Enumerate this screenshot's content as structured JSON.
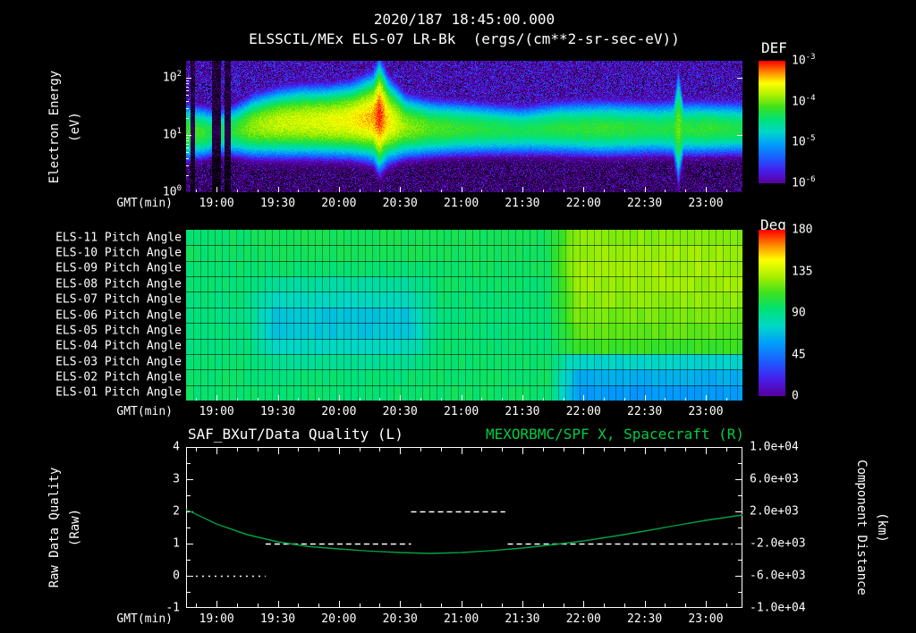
{
  "header": {
    "timestamp": "2020/187 18:45:00.000",
    "title": "ELSSCIL/MEx ELS-07 LR-Bk  (ergs/(cm**2-sr-sec-eV))"
  },
  "colors": {
    "background": "#000000",
    "text": "#ffffff",
    "title_right_green": "#00cc44",
    "curve_green": "#00a040",
    "quality_white": "#ffffff"
  },
  "time_axis": {
    "label": "GMT(min)",
    "start_hour": 18.75,
    "end_hour": 23.3,
    "tick_hours": [
      19.0,
      19.5,
      20.0,
      20.5,
      21.0,
      21.5,
      22.0,
      22.5,
      23.0
    ],
    "tick_labels": [
      "19:00",
      "19:30",
      "20:00",
      "20:30",
      "21:00",
      "21:30",
      "22:00",
      "22:30",
      "23:00"
    ]
  },
  "chart_data": [
    {
      "type": "heatmap",
      "name": "electron-energy-spectrogram",
      "title": "ELSSCIL/MEx ELS-07 LR-Bk",
      "units": "(ergs/(cm**2-sr-sec-eV))",
      "ylabel_lines": [
        "Electron Energy",
        "(eV)"
      ],
      "xlabel": "GMT(min)",
      "yticks": [
        "10^0",
        "10^1",
        "10^2"
      ],
      "y_log_positions": [
        0,
        1,
        2
      ],
      "y_log_range": [
        0,
        2.3
      ],
      "colorbar": {
        "title": "DEF",
        "ticks": [
          "10^-3",
          "10^-4",
          "10^-5",
          "10^-6"
        ],
        "log_range": [
          -6,
          -3
        ]
      },
      "band_keypoints": {
        "hours": [
          18.75,
          18.9,
          19.0,
          19.15,
          19.3,
          19.5,
          19.7,
          19.9,
          20.1,
          20.28,
          20.33,
          20.4,
          20.55,
          20.75,
          21.0,
          21.5,
          21.8,
          22.2,
          22.6,
          22.74,
          22.78,
          22.82,
          23.0,
          23.3
        ],
        "peak_log10_def": [
          -4.1,
          -4.2,
          -4.45,
          -4.2,
          -3.9,
          -3.75,
          -3.7,
          -3.65,
          -3.55,
          -3.35,
          -3.05,
          -3.5,
          -3.9,
          -4.1,
          -4.2,
          -4.35,
          -4.25,
          -4.2,
          -4.3,
          -4.25,
          -4.0,
          -4.25,
          -4.2,
          -4.3
        ],
        "center_eV": [
          11,
          11,
          11,
          12,
          14,
          16,
          17,
          17,
          18,
          20,
          22,
          18,
          14,
          13,
          13,
          12,
          13,
          13,
          13,
          13,
          14,
          13,
          13,
          13
        ],
        "sigma_decades": [
          0.28,
          0.26,
          0.24,
          0.26,
          0.3,
          0.32,
          0.33,
          0.33,
          0.34,
          0.38,
          0.46,
          0.38,
          0.3,
          0.28,
          0.27,
          0.25,
          0.27,
          0.28,
          0.27,
          0.28,
          0.55,
          0.28,
          0.27,
          0.27
        ]
      },
      "data_gaps_hours": [
        [
          18.78,
          18.82
        ],
        [
          18.96,
          19.03
        ],
        [
          19.06,
          19.11
        ]
      ]
    },
    {
      "type": "heatmap",
      "name": "pitch-angle-panel",
      "xlabel": "GMT(min)",
      "row_labels": [
        "ELS-11 Pitch Angle",
        "ELS-10 Pitch Angle",
        "ELS-09 Pitch Angle",
        "ELS-08 Pitch Angle",
        "ELS-07 Pitch Angle",
        "ELS-06 Pitch Angle",
        "ELS-05 Pitch Angle",
        "ELS-04 Pitch Angle",
        "ELS-03 Pitch Angle",
        "ELS-02 Pitch Angle",
        "ELS-01 Pitch Angle"
      ],
      "colorbar": {
        "title": "Deg",
        "ticks": [
          "180",
          "135",
          "90",
          "45",
          "0"
        ],
        "range": [
          0,
          180
        ]
      },
      "key_hours": [
        18.75,
        19.25,
        19.45,
        20.55,
        20.85,
        21.7,
        21.95,
        23.3
      ],
      "rows_deg": [
        [
          97,
          97,
          100,
          100,
          100,
          100,
          124,
          124
        ],
        [
          97,
          97,
          100,
          100,
          100,
          100,
          127,
          127
        ],
        [
          96,
          96,
          95,
          95,
          98,
          98,
          128,
          128
        ],
        [
          95,
          95,
          85,
          85,
          96,
          96,
          127,
          127
        ],
        [
          93,
          93,
          78,
          78,
          95,
          95,
          125,
          125
        ],
        [
          92,
          92,
          70,
          70,
          94,
          94,
          121,
          121
        ],
        [
          92,
          92,
          70,
          70,
          94,
          94,
          117,
          117
        ],
        [
          93,
          93,
          78,
          78,
          95,
          95,
          111,
          111
        ],
        [
          95,
          95,
          88,
          88,
          96,
          96,
          75,
          75
        ],
        [
          96,
          96,
          94,
          94,
          97,
          97,
          62,
          62
        ],
        [
          96,
          96,
          96,
          96,
          97,
          97,
          56,
          56
        ]
      ]
    },
    {
      "type": "line",
      "name": "quality-and-distance",
      "title_left": "SAF_BXuT/Data Quality (L)",
      "title_right": "MEXORBMC/SPF X, Spacecraft (R)",
      "xlabel": "GMT(min)",
      "left_axis": {
        "label_lines": [
          "Raw Data Quality",
          "(Raw)"
        ],
        "range": [
          -1,
          4
        ],
        "ticks": [
          "4",
          "3",
          "2",
          "1",
          "0",
          "-1"
        ]
      },
      "right_axis": {
        "label_lines": [
          "Component Distance",
          "(km)"
        ],
        "range": [
          -10000,
          10000
        ],
        "ticks": [
          "1.0e+04",
          "6.0e+03",
          "2.0e+03",
          "-2.0e+03",
          "-6.0e+03",
          "-1.0e+04"
        ]
      },
      "quality_segments": [
        {
          "value": 0,
          "start_hour": 18.83,
          "end_hour": 19.4
        },
        {
          "value": 1,
          "start_hour": 19.4,
          "end_hour": 20.59
        },
        {
          "value": 2,
          "start_hour": 20.59,
          "end_hour": 21.36
        },
        {
          "value": 1,
          "start_hour": 21.38,
          "end_hour": 23.22
        }
      ],
      "spacecraft_x": {
        "hours": [
          18.75,
          19.0,
          19.25,
          19.5,
          19.75,
          20.0,
          20.25,
          20.5,
          20.75,
          21.0,
          21.25,
          21.5,
          21.75,
          22.0,
          22.25,
          22.5,
          22.75,
          23.0,
          23.3
        ],
        "km": [
          2240,
          440,
          -890,
          -1780,
          -2360,
          -2670,
          -2930,
          -3110,
          -3220,
          -3110,
          -2870,
          -2560,
          -2140,
          -1670,
          -1080,
          -450,
          230,
          890,
          1560
        ]
      }
    }
  ]
}
